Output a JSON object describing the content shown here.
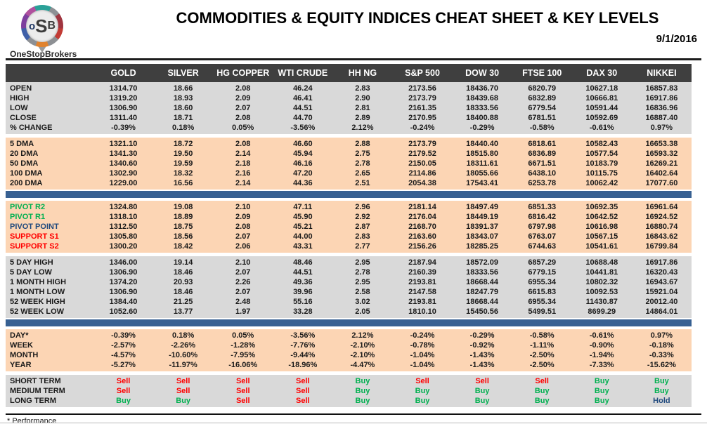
{
  "header": {
    "logo": {
      "letters": [
        "o",
        "S",
        "B"
      ],
      "subtext": "OneStopBrokers"
    },
    "title": "COMMODITIES & EQUITY INDICES CHEAT SHEET & KEY LEVELS",
    "date": "9/1/2016"
  },
  "colors": {
    "header_bg": "#3f3f3f",
    "gray_bg": "#d9d9d9",
    "peach_bg": "#fcd5b4",
    "blue_band": "#376092",
    "buy": "#00b050",
    "sell": "#ff0000",
    "hold": "#1f497d",
    "resistance": "#00b050",
    "pivot": "#1f497d",
    "support": "#ff0000"
  },
  "table": {
    "columns": [
      "GOLD",
      "SILVER",
      "HG COPPER",
      "WTI CRUDE",
      "HH NG",
      "S&P 500",
      "DOW 30",
      "FTSE 100",
      "DAX 30",
      "NIKKEI"
    ],
    "sections": [
      {
        "name": "ohlc",
        "bg": "gray",
        "after": "gap",
        "rows": [
          {
            "label": "OPEN",
            "values": [
              "1314.70",
              "18.66",
              "2.08",
              "46.24",
              "2.83",
              "2173.56",
              "18436.70",
              "6820.79",
              "10627.18",
              "16857.83"
            ]
          },
          {
            "label": "HIGH",
            "values": [
              "1319.20",
              "18.93",
              "2.09",
              "46.41",
              "2.90",
              "2173.79",
              "18439.68",
              "6832.89",
              "10666.81",
              "16917.86"
            ]
          },
          {
            "label": "LOW",
            "values": [
              "1306.90",
              "18.60",
              "2.07",
              "44.51",
              "2.81",
              "2161.35",
              "18333.56",
              "6779.54",
              "10591.44",
              "16836.96"
            ]
          },
          {
            "label": "CLOSE",
            "values": [
              "1311.40",
              "18.71",
              "2.08",
              "44.70",
              "2.89",
              "2170.95",
              "18400.88",
              "6781.51",
              "10592.69",
              "16887.40"
            ]
          },
          {
            "label": "% CHANGE",
            "values": [
              "-0.39%",
              "0.18%",
              "0.05%",
              "-3.56%",
              "2.12%",
              "-0.24%",
              "-0.29%",
              "-0.58%",
              "-0.61%",
              "0.97%"
            ]
          }
        ]
      },
      {
        "name": "moving-averages",
        "bg": "peach",
        "after": "blue",
        "rows": [
          {
            "label": "5 DMA",
            "values": [
              "1321.10",
              "18.72",
              "2.08",
              "46.60",
              "2.88",
              "2173.79",
              "18440.40",
              "6818.61",
              "10582.43",
              "16653.38"
            ]
          },
          {
            "label": "20 DMA",
            "values": [
              "1341.30",
              "19.50",
              "2.14",
              "45.94",
              "2.75",
              "2179.52",
              "18515.80",
              "6836.89",
              "10577.54",
              "16593.32"
            ]
          },
          {
            "label": "50 DMA",
            "values": [
              "1340.60",
              "19.59",
              "2.18",
              "46.16",
              "2.78",
              "2150.05",
              "18311.61",
              "6671.51",
              "10183.79",
              "16269.21"
            ]
          },
          {
            "label": "100 DMA",
            "values": [
              "1302.90",
              "18.32",
              "2.16",
              "47.20",
              "2.65",
              "2114.86",
              "18055.66",
              "6438.10",
              "10115.75",
              "16402.64"
            ]
          },
          {
            "label": "200 DMA",
            "values": [
              "1229.00",
              "16.56",
              "2.14",
              "44.36",
              "2.51",
              "2054.38",
              "17543.41",
              "6253.78",
              "10062.42",
              "17077.60"
            ]
          }
        ]
      },
      {
        "name": "pivots",
        "bg": "peach",
        "after": "gap",
        "rows": [
          {
            "label": "PIVOT R2",
            "label_color": "green",
            "values": [
              "1324.80",
              "19.08",
              "2.10",
              "47.11",
              "2.96",
              "2181.14",
              "18497.49",
              "6851.33",
              "10692.35",
              "16961.64"
            ]
          },
          {
            "label": "PIVOT R1",
            "label_color": "green",
            "values": [
              "1318.10",
              "18.89",
              "2.09",
              "45.90",
              "2.92",
              "2176.04",
              "18449.19",
              "6816.42",
              "10642.52",
              "16924.52"
            ]
          },
          {
            "label": "PIVOT POINT",
            "label_color": "navy",
            "values": [
              "1312.50",
              "18.75",
              "2.08",
              "45.21",
              "2.87",
              "2168.70",
              "18391.37",
              "6797.98",
              "10616.98",
              "16880.74"
            ]
          },
          {
            "label": "SUPPORT S1",
            "label_color": "red",
            "values": [
              "1305.80",
              "18.56",
              "2.07",
              "44.00",
              "2.83",
              "2163.60",
              "18343.07",
              "6763.07",
              "10567.15",
              "16843.62"
            ]
          },
          {
            "label": "SUPPORT S2",
            "label_color": "red",
            "values": [
              "1300.20",
              "18.42",
              "2.06",
              "43.31",
              "2.77",
              "2156.26",
              "18285.25",
              "6744.63",
              "10541.61",
              "16799.84"
            ]
          }
        ]
      },
      {
        "name": "ranges",
        "bg": "gray",
        "after": "blue",
        "rows": [
          {
            "label": "5 DAY HIGH",
            "values": [
              "1346.00",
              "19.14",
              "2.10",
              "48.46",
              "2.95",
              "2187.94",
              "18572.09",
              "6857.29",
              "10688.48",
              "16917.86"
            ]
          },
          {
            "label": "5 DAY LOW",
            "values": [
              "1306.90",
              "18.46",
              "2.07",
              "44.51",
              "2.78",
              "2160.39",
              "18333.56",
              "6779.15",
              "10441.81",
              "16320.43"
            ]
          },
          {
            "label": "1 MONTH HIGH",
            "values": [
              "1374.20",
              "20.93",
              "2.26",
              "49.36",
              "2.95",
              "2193.81",
              "18668.44",
              "6955.34",
              "10802.32",
              "16943.67"
            ]
          },
          {
            "label": "1 MONTH LOW",
            "values": [
              "1306.90",
              "18.46",
              "2.07",
              "39.96",
              "2.58",
              "2147.58",
              "18247.79",
              "6615.83",
              "10092.53",
              "15921.04"
            ]
          },
          {
            "label": "52 WEEK HIGH",
            "values": [
              "1384.40",
              "21.25",
              "2.48",
              "55.16",
              "3.02",
              "2193.81",
              "18668.44",
              "6955.34",
              "11430.87",
              "20012.40"
            ]
          },
          {
            "label": "52 WEEK LOW",
            "values": [
              "1052.60",
              "13.77",
              "1.97",
              "33.28",
              "2.05",
              "1810.10",
              "15450.56",
              "5499.51",
              "8699.29",
              "14864.01"
            ]
          }
        ]
      },
      {
        "name": "performance",
        "bg": "peach",
        "after": "gap",
        "rows": [
          {
            "label": "DAY*",
            "values": [
              "-0.39%",
              "0.18%",
              "0.05%",
              "-3.56%",
              "2.12%",
              "-0.24%",
              "-0.29%",
              "-0.58%",
              "-0.61%",
              "0.97%"
            ]
          },
          {
            "label": "WEEK",
            "values": [
              "-2.57%",
              "-2.26%",
              "-1.28%",
              "-7.76%",
              "-2.10%",
              "-0.78%",
              "-0.92%",
              "-1.11%",
              "-0.90%",
              "-0.18%"
            ]
          },
          {
            "label": "MONTH",
            "values": [
              "-4.57%",
              "-10.60%",
              "-7.95%",
              "-9.44%",
              "-2.10%",
              "-1.04%",
              "-1.43%",
              "-2.50%",
              "-1.94%",
              "-0.33%"
            ]
          },
          {
            "label": "YEAR",
            "values": [
              "-5.27%",
              "-11.97%",
              "-16.06%",
              "-18.96%",
              "-4.47%",
              "-1.04%",
              "-1.43%",
              "-2.50%",
              "-7.33%",
              "-15.62%"
            ]
          }
        ]
      },
      {
        "name": "signals",
        "bg": "gray",
        "signal": true,
        "after": "none",
        "rows": [
          {
            "label": "SHORT TERM",
            "values": [
              "Sell",
              "Sell",
              "Sell",
              "Sell",
              "Buy",
              "Sell",
              "Sell",
              "Sell",
              "Buy",
              "Buy"
            ]
          },
          {
            "label": "MEDIUM TERM",
            "values": [
              "Sell",
              "Sell",
              "Sell",
              "Sell",
              "Buy",
              "Buy",
              "Buy",
              "Buy",
              "Buy",
              "Buy"
            ]
          },
          {
            "label": "LONG TERM",
            "values": [
              "Buy",
              "Buy",
              "Sell",
              "Sell",
              "Buy",
              "Buy",
              "Buy",
              "Buy",
              "Buy",
              "Hold"
            ]
          }
        ]
      }
    ]
  },
  "footnote": "* Performance"
}
